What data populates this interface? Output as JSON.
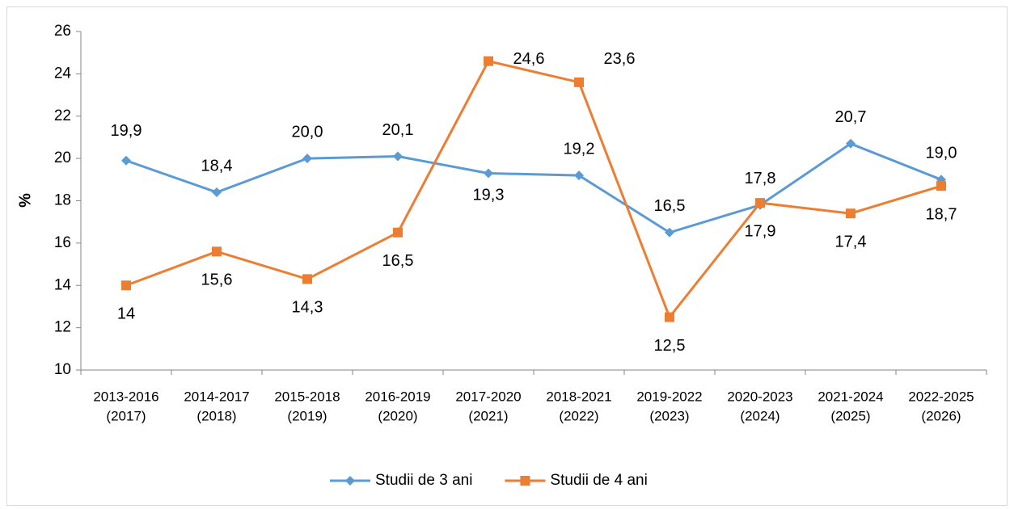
{
  "chart_data": {
    "type": "line",
    "y_label": "%",
    "categories": [
      [
        "2013-2016",
        "(2017)"
      ],
      [
        "2014-2017",
        "(2018)"
      ],
      [
        "2015-2018",
        "(2019)"
      ],
      [
        "2016-2019",
        "(2020)"
      ],
      [
        "2017-2020",
        "(2021)"
      ],
      [
        "2018-2021",
        "(2022)"
      ],
      [
        "2019-2022",
        "(2023)"
      ],
      [
        "2020-2023",
        "(2024)"
      ],
      [
        "2021-2024",
        "(2025)"
      ],
      [
        "2022-2025",
        "(2026)"
      ]
    ],
    "series": [
      {
        "name": "Studii de 3 ani",
        "color": "#5b9bd5",
        "marker": "diamond",
        "values": [
          19.9,
          18.4,
          20.0,
          20.1,
          19.3,
          19.2,
          16.5,
          17.8,
          20.7,
          19.0
        ],
        "value_labels": [
          "19,9",
          "18,4",
          "20,0",
          "20,1",
          "19,3",
          "19,2",
          "16,5",
          "17,8",
          "20,7",
          "19,0"
        ]
      },
      {
        "name": "Studii de 4 ani",
        "color": "#ed7d31",
        "marker": "square",
        "values": [
          14,
          15.6,
          14.3,
          16.5,
          24.6,
          23.6,
          12.5,
          17.9,
          17.4,
          18.7
        ],
        "value_labels": [
          "14",
          "15,6",
          "14,3",
          "16,5",
          "24,6",
          "23,6",
          "12,5",
          "17,9",
          "17,4",
          "18,7"
        ]
      }
    ],
    "ylim": [
      10,
      26
    ],
    "yticks": [
      10,
      12,
      14,
      16,
      18,
      20,
      22,
      24,
      26
    ],
    "grid": false,
    "legend": "bottom"
  }
}
